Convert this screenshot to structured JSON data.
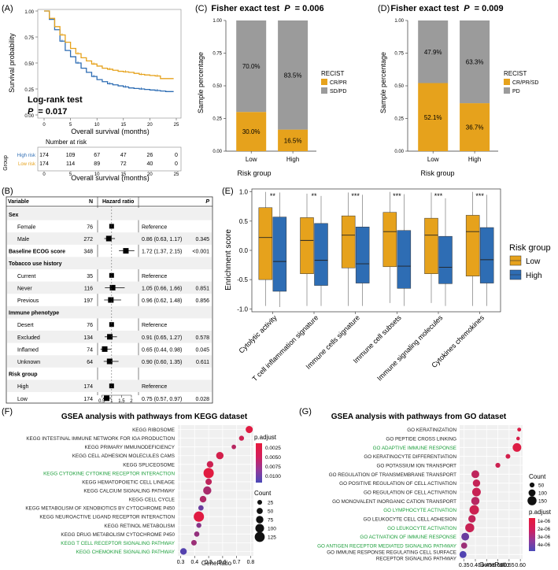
{
  "colors": {
    "orange": "#E6A21C",
    "blue": "#2E6DB4",
    "gray": "#9B9B9B",
    "green": "#1B9E3A",
    "panel_bg": "#F0F0F0"
  },
  "panels": {
    "a": "(A)",
    "b": "(B)",
    "c": "(C)",
    "d": "(D)",
    "e": "(E)",
    "f": "(F)",
    "g": "(G)"
  },
  "km": {
    "ylabel": "Survival probability",
    "xlabel": "Overall survival (months)",
    "yticks": [
      "1.00",
      "0.75",
      "0.50",
      "0.25",
      "0.00"
    ],
    "xticks": [
      "0",
      "5",
      "10",
      "15",
      "20",
      "25"
    ],
    "test_title": "Log-rank test",
    "p_label": "P",
    "p_value": "= 0.017",
    "risk_title": "Number at risk",
    "group_axis": "Group",
    "xlabel2": "Overall survival (months)",
    "rows": [
      {
        "label": "High risk",
        "counts": [
          "174",
          "109",
          "67",
          "47",
          "26",
          "0"
        ]
      },
      {
        "label": "Low risk",
        "counts": [
          "174",
          "114",
          "89",
          "72",
          "40",
          "0"
        ]
      }
    ],
    "chart_data": {
      "type": "line",
      "x_range": [
        0,
        25
      ],
      "y_range": [
        0,
        1
      ],
      "series": [
        {
          "name": "High risk",
          "x": [
            0,
            1,
            2,
            3,
            4,
            5,
            6,
            7,
            8,
            9,
            10,
            11,
            12,
            13,
            14,
            15,
            16,
            17,
            18,
            19,
            20,
            21,
            22,
            23,
            24
          ],
          "y": [
            1.0,
            0.92,
            0.82,
            0.71,
            0.62,
            0.56,
            0.5,
            0.45,
            0.41,
            0.37,
            0.34,
            0.32,
            0.3,
            0.29,
            0.28,
            0.27,
            0.26,
            0.255,
            0.25,
            0.245,
            0.24,
            0.235,
            0.23,
            0.225,
            0.225
          ]
        },
        {
          "name": "Low risk",
          "x": [
            0,
            1,
            2,
            3,
            4,
            5,
            6,
            7,
            8,
            9,
            10,
            11,
            12,
            13,
            14,
            15,
            16,
            17,
            18,
            19,
            20,
            21,
            22,
            23,
            24
          ],
          "y": [
            1.0,
            0.93,
            0.85,
            0.77,
            0.7,
            0.64,
            0.59,
            0.55,
            0.52,
            0.49,
            0.47,
            0.45,
            0.44,
            0.43,
            0.42,
            0.415,
            0.41,
            0.4,
            0.39,
            0.385,
            0.38,
            0.375,
            0.35,
            0.35,
            0.35
          ]
        }
      ]
    }
  },
  "forest": {
    "headers": {
      "variable": "Variable",
      "n": "N",
      "hr": "Hazard ratio",
      "p": "P"
    },
    "rows": [
      {
        "label": "Sex",
        "bold": true,
        "n": "",
        "text": "",
        "p": ""
      },
      {
        "label": "Female",
        "bold": false,
        "n": "76",
        "text": "Reference",
        "p": "",
        "hr": 1.0,
        "lo": null,
        "hi": null
      },
      {
        "label": "Male",
        "bold": false,
        "n": "272",
        "text": "0.86 (0.63, 1.17)",
        "p": "0.345",
        "hr": 0.86,
        "lo": 0.63,
        "hi": 1.17
      },
      {
        "label": "Baseline ECOG score",
        "bold": true,
        "n": "348",
        "text": "1.72 (1.37, 2.15)",
        "p": "<0.001",
        "hr": 1.72,
        "lo": 1.37,
        "hi": 2.15
      },
      {
        "label": "Tobacco use history",
        "bold": true,
        "n": "",
        "text": "",
        "p": ""
      },
      {
        "label": "Current",
        "bold": false,
        "n": "35",
        "text": "Reference",
        "p": "",
        "hr": 1.0,
        "lo": null,
        "hi": null
      },
      {
        "label": "Never",
        "bold": false,
        "n": "116",
        "text": "1.05 (0.66, 1.66)",
        "p": "0.851",
        "hr": 1.05,
        "lo": 0.66,
        "hi": 1.66
      },
      {
        "label": "Previous",
        "bold": false,
        "n": "197",
        "text": "0.96 (0.62, 1.48)",
        "p": "0.856",
        "hr": 0.96,
        "lo": 0.62,
        "hi": 1.48
      },
      {
        "label": "Immune phenotype",
        "bold": true,
        "n": "",
        "text": "",
        "p": ""
      },
      {
        "label": "Desert",
        "bold": false,
        "n": "76",
        "text": "Reference",
        "p": "",
        "hr": 1.0,
        "lo": null,
        "hi": null
      },
      {
        "label": "Excluded",
        "bold": false,
        "n": "134",
        "text": "0.91 (0.65, 1.27)",
        "p": "0.578",
        "hr": 0.91,
        "lo": 0.65,
        "hi": 1.27
      },
      {
        "label": "Inflamed",
        "bold": false,
        "n": "74",
        "text": "0.65 (0.44, 0.98)",
        "p": "0.045",
        "hr": 0.65,
        "lo": 0.44,
        "hi": 0.98
      },
      {
        "label": "Unknown",
        "bold": false,
        "n": "64",
        "text": "0.90 (0.60, 1.35)",
        "p": "0.611",
        "hr": 0.9,
        "lo": 0.6,
        "hi": 1.35
      },
      {
        "label": "Risk group",
        "bold": true,
        "n": "",
        "text": "",
        "p": ""
      },
      {
        "label": "High",
        "bold": false,
        "n": "174",
        "text": "Reference",
        "p": "",
        "hr": 1.0,
        "lo": null,
        "hi": null
      },
      {
        "label": "Low",
        "bold": false,
        "n": "174",
        "text": "0.75 (0.57, 0.97)",
        "p": "0.028",
        "hr": 0.75,
        "lo": 0.57,
        "hi": 0.97
      }
    ],
    "axis_ticks": [
      "0.5",
      "1",
      "1.5",
      "2"
    ]
  },
  "recist_c": {
    "title_prefix": "Fisher exact test",
    "title_p": "P",
    "title_value": "= 0.006",
    "ylabel": "Sample percentage",
    "xlabel": "Risk group",
    "yticks": [
      "1.00",
      "0.75",
      "0.50",
      "0.25",
      "0.00"
    ],
    "legend_title": "RECIST",
    "legend": [
      "CR/PR",
      "SD/PD"
    ],
    "chart_data": {
      "type": "bar",
      "stacked": true,
      "categories": [
        "Low",
        "High"
      ],
      "series": [
        {
          "name": "CR/PR",
          "values": [
            0.3,
            0.165
          ]
        },
        {
          "name": "SD/PD",
          "values": [
            0.7,
            0.835
          ]
        }
      ],
      "labels": [
        [
          "30.0%",
          "70.0%"
        ],
        [
          "16.5%",
          "83.5%"
        ]
      ],
      "ylim": [
        0,
        1
      ]
    }
  },
  "recist_d": {
    "title_prefix": "Fisher exact test",
    "title_p": "P",
    "title_value": "= 0.009",
    "ylabel": "Sample percentage",
    "xlabel": "Risk group",
    "yticks": [
      "1.00",
      "0.75",
      "0.50",
      "0.25",
      "0.00"
    ],
    "legend_title": "RECIST",
    "legend": [
      "CR/PR/SD",
      "PD"
    ],
    "chart_data": {
      "type": "bar",
      "stacked": true,
      "categories": [
        "Low",
        "High"
      ],
      "series": [
        {
          "name": "CR/PR/SD",
          "values": [
            0.521,
            0.367
          ]
        },
        {
          "name": "PD",
          "values": [
            0.479,
            0.633
          ]
        }
      ],
      "labels": [
        [
          "52.1%",
          "47.9%"
        ],
        [
          "36.7%",
          "63.3%"
        ]
      ],
      "ylim": [
        0,
        1
      ]
    }
  },
  "box": {
    "ylabel": "Enrichment score",
    "yticks": [
      "1.0",
      "0.5",
      "0.0",
      "-0.5",
      "-1.0"
    ],
    "legend_title": "Risk group",
    "legend": [
      "Low",
      "High"
    ],
    "chart_data": {
      "type": "box",
      "ylim": [
        -1.05,
        1.05
      ],
      "categories": [
        "Cytolytic activity",
        "T cell inflammation signature",
        "Immune cells signature",
        "Immune cell subsets",
        "Immune signaling molecules",
        "Cytokines chemokines"
      ],
      "significance": [
        "**",
        "**",
        "***",
        "***",
        "***",
        "***"
      ],
      "low": [
        {
          "min": -0.95,
          "q1": -0.5,
          "median": 0.22,
          "q3": 0.73,
          "max": 1.0
        },
        {
          "min": -0.95,
          "q1": -0.4,
          "median": 0.17,
          "q3": 0.56,
          "max": 0.97
        },
        {
          "min": -0.95,
          "q1": -0.3,
          "median": 0.26,
          "q3": 0.59,
          "max": 0.99
        },
        {
          "min": -0.9,
          "q1": -0.28,
          "median": 0.32,
          "q3": 0.65,
          "max": 1.0
        },
        {
          "min": -0.9,
          "q1": -0.4,
          "median": 0.26,
          "q3": 0.55,
          "max": 0.99
        },
        {
          "min": -0.95,
          "q1": -0.44,
          "median": 0.32,
          "q3": 0.6,
          "max": 1.0
        }
      ],
      "high": [
        {
          "min": -0.97,
          "q1": -0.7,
          "median": -0.19,
          "q3": 0.57,
          "max": 0.99
        },
        {
          "min": -0.95,
          "q1": -0.6,
          "median": -0.17,
          "q3": 0.46,
          "max": 0.93
        },
        {
          "min": -0.95,
          "q1": -0.56,
          "median": -0.23,
          "q3": 0.4,
          "max": 0.95
        },
        {
          "min": -0.95,
          "q1": -0.65,
          "median": -0.27,
          "q3": 0.34,
          "max": 0.96
        },
        {
          "min": -0.95,
          "q1": -0.57,
          "median": -0.29,
          "q3": 0.24,
          "max": 0.89
        },
        {
          "min": -0.95,
          "q1": -0.56,
          "median": -0.16,
          "q3": 0.39,
          "max": 0.95
        }
      ]
    }
  },
  "gsea_f": {
    "title": "GSEA analysis with pathways from KEGG dataset",
    "xlabel": "GeneRatio",
    "xticks": [
      "0.3",
      "0.4",
      "0.5",
      "0.6",
      "0.7",
      "0.8"
    ],
    "legend_padj_title": "p.adjust",
    "legend_padj": [
      "0.0025",
      "0.0050",
      "0.0075",
      "0.0100"
    ],
    "legend_count_title": "Count",
    "legend_count": [
      "25",
      "50",
      "75",
      "100",
      "125"
    ],
    "chart_data": {
      "type": "scatter",
      "xlim": [
        0.28,
        0.82
      ],
      "padj_range": [
        0.0,
        0.0115
      ],
      "terms": [
        {
          "name": "KEGG RIBOSOME",
          "ratio": 0.79,
          "count": 70,
          "padj": 0.0006,
          "highlight": false
        },
        {
          "name": "KEGG INTESTINAL IMMUNE NETWORK FOR IGA PRODUCTION",
          "ratio": 0.735,
          "count": 30,
          "padj": 0.002,
          "highlight": false
        },
        {
          "name": "KEGG PRIMARY IMMUNODEFICIENCY",
          "ratio": 0.68,
          "count": 20,
          "padj": 0.0035,
          "highlight": false
        },
        {
          "name": "KEGG CELL ADHESION MOLECULES CAMS",
          "ratio": 0.58,
          "count": 75,
          "padj": 0.0015,
          "highlight": false
        },
        {
          "name": "KEGG SPLICEOSOME",
          "ratio": 0.51,
          "count": 60,
          "padj": 0.002,
          "highlight": false
        },
        {
          "name": "KEGG CYTOKINE CYTOKINE RECEPTOR INTERACTION",
          "ratio": 0.5,
          "count": 130,
          "padj": 0.0005,
          "highlight": true
        },
        {
          "name": "KEGG HEMATOPOIETIC CELL LINEAGE",
          "ratio": 0.5,
          "count": 55,
          "padj": 0.003,
          "highlight": false
        },
        {
          "name": "KEGG CALCIUM SIGNALING PATHWAY",
          "ratio": 0.49,
          "count": 90,
          "padj": 0.0045,
          "highlight": false
        },
        {
          "name": "KEGG CELL CYCLE",
          "ratio": 0.46,
          "count": 60,
          "padj": 0.004,
          "highlight": false
        },
        {
          "name": "KEGG METABOLISM OF XENOBIOTICS BY CYTOCHROME P450",
          "ratio": 0.445,
          "count": 35,
          "padj": 0.009,
          "highlight": false
        },
        {
          "name": "KEGG NEUROACTIVE LIGAND RECEPTOR INTERACTION",
          "ratio": 0.43,
          "count": 130,
          "padj": 0.0006,
          "highlight": false
        },
        {
          "name": "KEGG RETINOL METABOLISM",
          "ratio": 0.43,
          "count": 30,
          "padj": 0.007,
          "highlight": false
        },
        {
          "name": "KEGG DRUG METABOLISM CYTOCHROME P450",
          "ratio": 0.415,
          "count": 35,
          "padj": 0.006,
          "highlight": false
        },
        {
          "name": "KEGG T CELL RECEPTOR SIGNALING PATHWAY",
          "ratio": 0.395,
          "count": 40,
          "padj": 0.0055,
          "highlight": true
        },
        {
          "name": "KEGG CHEMOKINE SIGNALING PATHWAY",
          "ratio": 0.32,
          "count": 60,
          "padj": 0.0105,
          "highlight": true
        }
      ]
    }
  },
  "gsea_g": {
    "title": "GSEA analysis with pathways from GO dataset",
    "xlabel": "GeneRatio",
    "xticks": [
      "0.35",
      "0.40",
      "0.45",
      "0.50",
      "0.55",
      "0.60"
    ],
    "legend_count_title": "Count",
    "legend_count": [
      "50",
      "100",
      "150"
    ],
    "legend_padj_title": "p.adjust",
    "legend_padj": [
      "1e-06",
      "2e-06",
      "3e-06",
      "4e-06"
    ],
    "chart_data": {
      "type": "scatter",
      "xlim": [
        0.33,
        0.61
      ],
      "padj_range": [
        0.0,
        4.6e-06
      ],
      "terms": [
        {
          "name": "GO KERATINIZATION",
          "ratio": 0.595,
          "count": 25,
          "padj": 4e-07,
          "highlight": false
        },
        {
          "name": "GO PEPTIDE CROSS LINKING",
          "ratio": 0.59,
          "count": 20,
          "padj": 5e-07,
          "highlight": false
        },
        {
          "name": "GO ADAPTIVE IMMUNE RESPONSE",
          "ratio": 0.585,
          "count": 140,
          "padj": 3e-07,
          "highlight": true
        },
        {
          "name": "GO KERATINOCYTE DIFFERENTIATION",
          "ratio": 0.545,
          "count": 45,
          "padj": 6e-07,
          "highlight": false
        },
        {
          "name": "GO POTASSIUM ION TRANSPORT",
          "ratio": 0.5,
          "count": 50,
          "padj": 8e-07,
          "highlight": false
        },
        {
          "name": "GO REGULATION OF TRANSMEMBRANE TRANSPORT",
          "ratio": 0.4,
          "count": 120,
          "padj": 1.2e-06,
          "highlight": false
        },
        {
          "name": "GO POSITIVE REGULATION OF CELL ACTIVATION",
          "ratio": 0.405,
          "count": 110,
          "padj": 1e-06,
          "highlight": false
        },
        {
          "name": "GO REGULATION OF CELL ACTIVATION",
          "ratio": 0.405,
          "count": 140,
          "padj": 9e-07,
          "highlight": false
        },
        {
          "name": "GO MONOVALENT INORGANIC CATION TRANSPORT",
          "ratio": 0.4,
          "count": 130,
          "padj": 1.4e-06,
          "highlight": false
        },
        {
          "name": "GO LYMPHOCYTE ACTIVATION",
          "ratio": 0.395,
          "count": 160,
          "padj": 8e-07,
          "highlight": true
        },
        {
          "name": "GO LEUKOCYTE CELL CELL ADHESION",
          "ratio": 0.385,
          "count": 110,
          "padj": 1.1e-06,
          "highlight": false
        },
        {
          "name": "GO LEUKOCYTE ACTIVATION",
          "ratio": 0.375,
          "count": 150,
          "padj": 9e-07,
          "highlight": true
        },
        {
          "name": "GO ACTIVATION OF IMMUNE RESPONSE",
          "ratio": 0.355,
          "count": 120,
          "padj": 3.6e-06,
          "highlight": true
        },
        {
          "name": "GO ANTIGEN RECEPTOR MEDIATED SIGNALING PATHWAY",
          "ratio": 0.35,
          "count": 80,
          "padj": 2.2e-06,
          "highlight": true
        },
        {
          "name": "GO IMMUNE RESPONSE REGULATING CELL SURFACE RECEPTOR SIGNALING PATHWAY",
          "ratio": 0.345,
          "count": 100,
          "padj": 4.3e-06,
          "highlight": false
        }
      ]
    }
  }
}
